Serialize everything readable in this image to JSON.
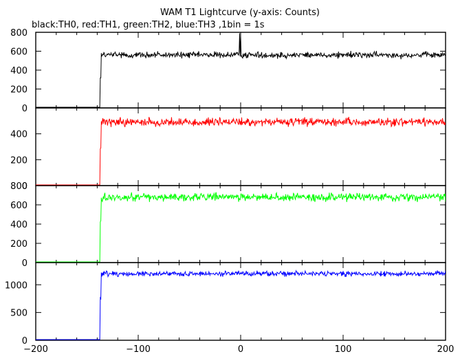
{
  "chart_data": {
    "type": "line",
    "title": "WAM T1 Lightcurve (y-axis: Counts)",
    "subtitle": "black:TH0, red:TH1, green:TH2, blue:TH3 ,1bin = 1s",
    "xlim": [
      -200,
      200
    ],
    "x_ticks": [
      -200,
      -100,
      0,
      100,
      200
    ],
    "x_tick_labels": [
      "−200",
      "−100",
      "0",
      "100",
      "200"
    ],
    "grid": false,
    "panels": [
      {
        "series_name": "TH0",
        "color": "#000000",
        "ylim": [
          0,
          800
        ],
        "y_ticks": [
          0,
          200,
          400,
          600,
          800
        ],
        "y_tick_labels": [
          "0",
          "200",
          "400",
          "600",
          "800"
        ],
        "baseline": 0,
        "onset_time": -137,
        "onset_level": 330,
        "plateau_mean": 560,
        "noise_amplitude": 25,
        "spikes": [
          {
            "x": -1,
            "y": 790
          },
          {
            "x": 0,
            "y": 760
          }
        ]
      },
      {
        "series_name": "TH1",
        "color": "#ff0000",
        "ylim": [
          0,
          600
        ],
        "y_ticks": [
          0,
          200,
          400
        ],
        "y_tick_labels": [
          "0",
          "200",
          "400"
        ],
        "baseline": 3,
        "onset_time": -137,
        "onset_level": 290,
        "plateau_mean": 490,
        "noise_amplitude": 24,
        "spikes": []
      },
      {
        "series_name": "TH2",
        "color": "#00ff00",
        "ylim": [
          0,
          800
        ],
        "y_ticks": [
          0,
          200,
          400,
          600,
          800
        ],
        "y_tick_labels": [
          "0",
          "200",
          "400",
          "600",
          "800"
        ],
        "baseline": 5,
        "onset_time": -137,
        "onset_level": 420,
        "plateau_mean": 680,
        "noise_amplitude": 30,
        "spikes": []
      },
      {
        "series_name": "TH3",
        "color": "#0000ff",
        "ylim": [
          0,
          1400
        ],
        "y_ticks": [
          0,
          500,
          1000
        ],
        "y_tick_labels": [
          "0",
          "500",
          "1000"
        ],
        "baseline": 0,
        "onset_time": -137,
        "onset_level": 750,
        "plateau_mean": 1200,
        "noise_amplitude": 35,
        "spikes": []
      }
    ]
  }
}
